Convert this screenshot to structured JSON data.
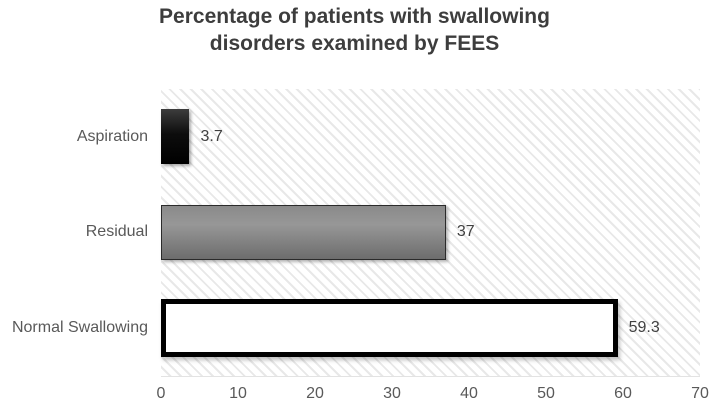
{
  "chart": {
    "title_lines": [
      "Percentage of patients with swallowing",
      "disorders examined by FEES"
    ]
  },
  "chart_data": {
    "type": "bar",
    "orientation": "horizontal",
    "title": "Percentage of patients with swallowing disorders examined by FEES",
    "categories": [
      "Aspiration",
      "Residual",
      "Normal Swallowing"
    ],
    "values": [
      3.7,
      37,
      59.3
    ],
    "value_labels": [
      "3.7",
      "37",
      "59.3"
    ],
    "bar_styles": [
      "solid-black",
      "gray-gradient",
      "white-thick-outline"
    ],
    "xlim": [
      0,
      70
    ],
    "x_ticks": [
      0,
      10,
      20,
      30,
      40,
      50,
      60,
      70
    ],
    "xlabel": "",
    "ylabel": "",
    "legend": "none",
    "grid": "off",
    "plot_background": "light-downward-diagonal-hatch"
  },
  "colors": {
    "title_color": "#3d3d3d",
    "category_label_color": "#595959",
    "axis_tick_color": "#595959",
    "value_label_color": "#404040",
    "bar_black": "#0a0a0a",
    "bar_gray": "#8a8a8a",
    "bar_white": "#ffffff",
    "bar_outline": "#000000",
    "hatch_stripe": "#e8e8e8"
  }
}
